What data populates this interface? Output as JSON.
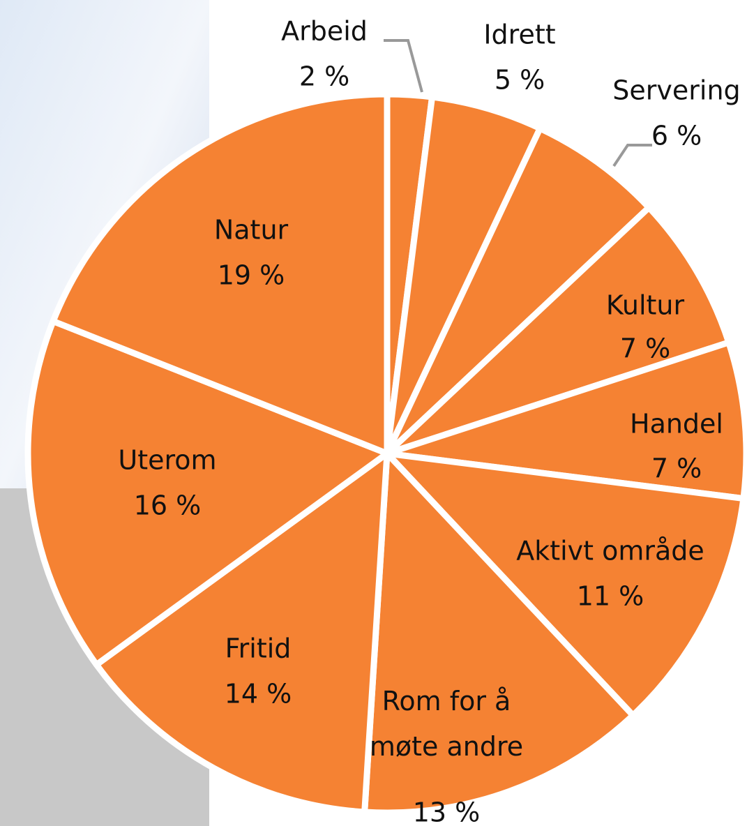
{
  "chart_data": {
    "type": "pie",
    "categories": [
      "Arbeid",
      "Idrett",
      "Servering",
      "Kultur",
      "Handel",
      "Aktivt område",
      "Rom for å møte andre",
      "Fritid",
      "Uterom",
      "Natur"
    ],
    "values": [
      2,
      5,
      6,
      7,
      7,
      11,
      13,
      14,
      16,
      19
    ],
    "value_labels": [
      "2 %",
      "5 %",
      "6 %",
      "7 %",
      "7 %",
      "11 %",
      "13 %",
      "14 %",
      "16 %",
      "19 %"
    ],
    "color": "#f58233"
  }
}
